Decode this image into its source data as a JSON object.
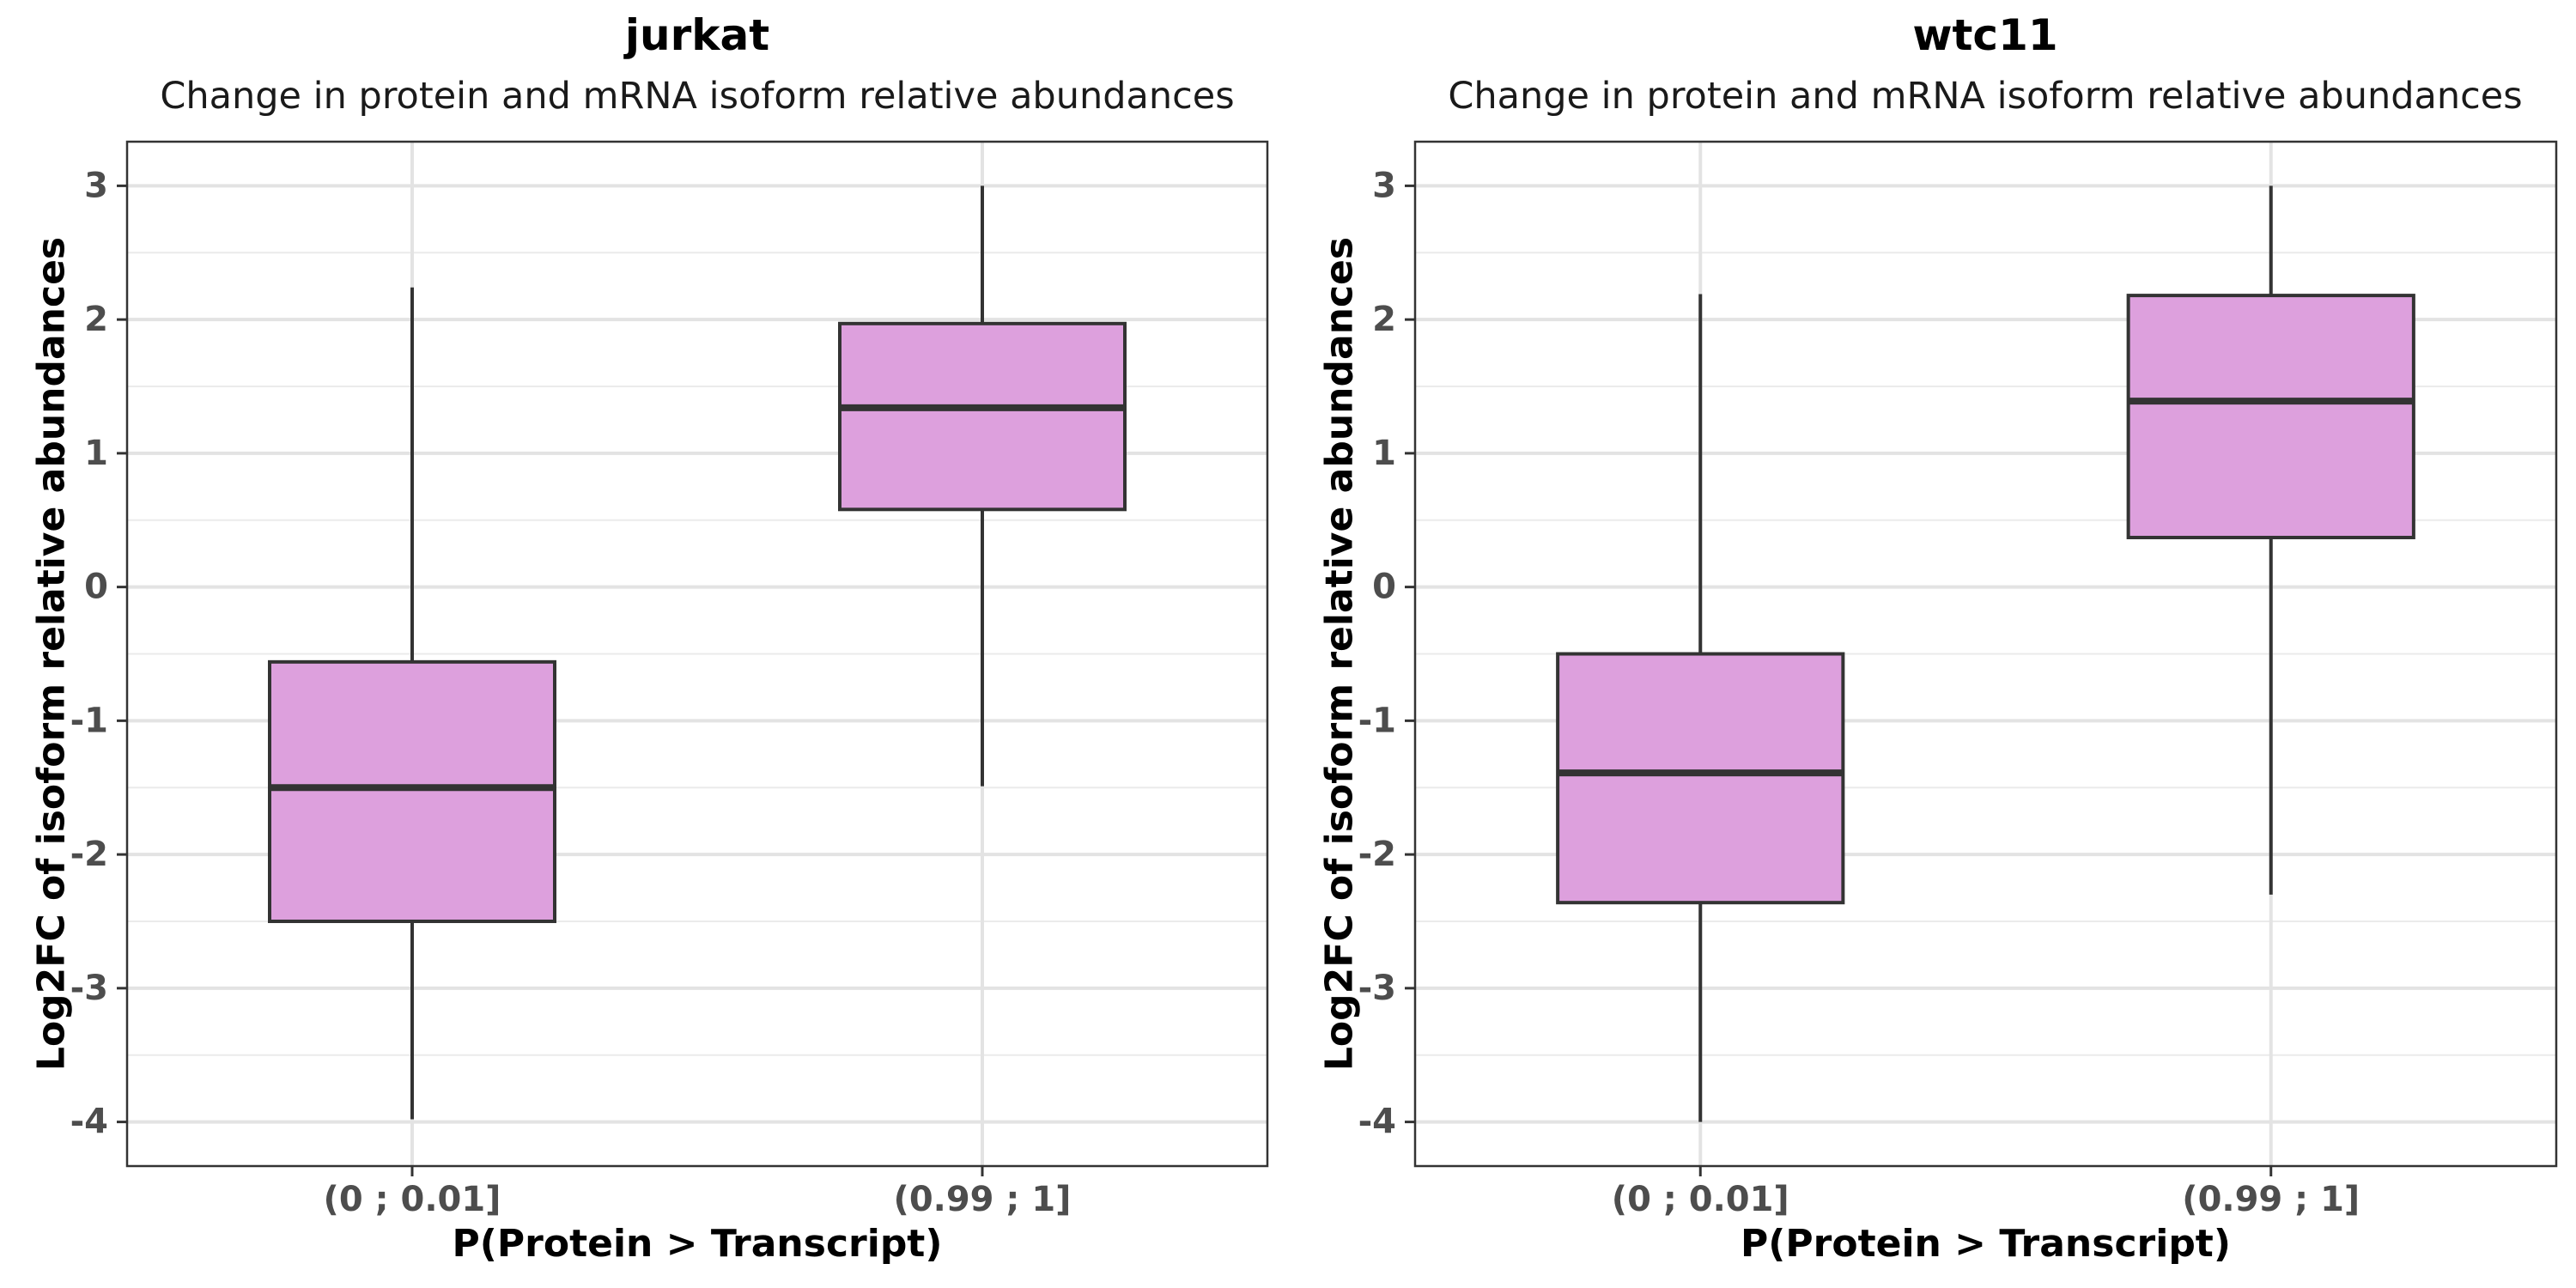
{
  "chart_data": [
    {
      "type": "box",
      "title": "jurkat",
      "subtitle": "Change in protein and mRNA isoform relative abundances",
      "xlabel": "P(Protein > Transcript)",
      "ylabel": "Log2FC of isoform relative abundances",
      "categories": [
        "(0 ; 0.01]",
        "(0.99 ; 1]"
      ],
      "ylim": [
        -4.33,
        3.33
      ],
      "yticks": [
        3,
        2,
        1,
        0,
        -1,
        -2,
        -3,
        -4
      ],
      "ytick_labels": [
        "3",
        "2",
        "1",
        "0",
        "-1",
        "-2",
        "-3",
        "-4"
      ],
      "grid": true,
      "fill_color": "#dda0dd",
      "stroke_color": "#333333",
      "boxes": [
        {
          "category": "(0 ; 0.01]",
          "whisker_low": -3.98,
          "q1": -2.5,
          "median": -1.5,
          "q3": -0.56,
          "whisker_high": 2.24
        },
        {
          "category": "(0.99 ; 1]",
          "whisker_low": -1.49,
          "q1": 0.58,
          "median": 1.34,
          "q3": 1.97,
          "whisker_high": 3.0
        }
      ]
    },
    {
      "type": "box",
      "title": "wtc11",
      "subtitle": "Change in protein and mRNA isoform relative abundances",
      "xlabel": "P(Protein > Transcript)",
      "ylabel": "Log2FC of isoform relative abundances",
      "categories": [
        "(0 ; 0.01]",
        "(0.99 ; 1]"
      ],
      "ylim": [
        -4.33,
        3.33
      ],
      "yticks": [
        3,
        2,
        1,
        0,
        -1,
        -2,
        -3,
        -4
      ],
      "ytick_labels": [
        "3",
        "2",
        "1",
        "0",
        "-1",
        "-2",
        "-3",
        "-4"
      ],
      "grid": true,
      "fill_color": "#dda0dd",
      "stroke_color": "#333333",
      "boxes": [
        {
          "category": "(0 ; 0.01]",
          "whisker_low": -4.0,
          "q1": -2.36,
          "median": -1.39,
          "q3": -0.5,
          "whisker_high": 2.19
        },
        {
          "category": "(0.99 ; 1]",
          "whisker_low": -2.3,
          "q1": 0.37,
          "median": 1.39,
          "q3": 2.18,
          "whisker_high": 3.0
        }
      ]
    }
  ]
}
